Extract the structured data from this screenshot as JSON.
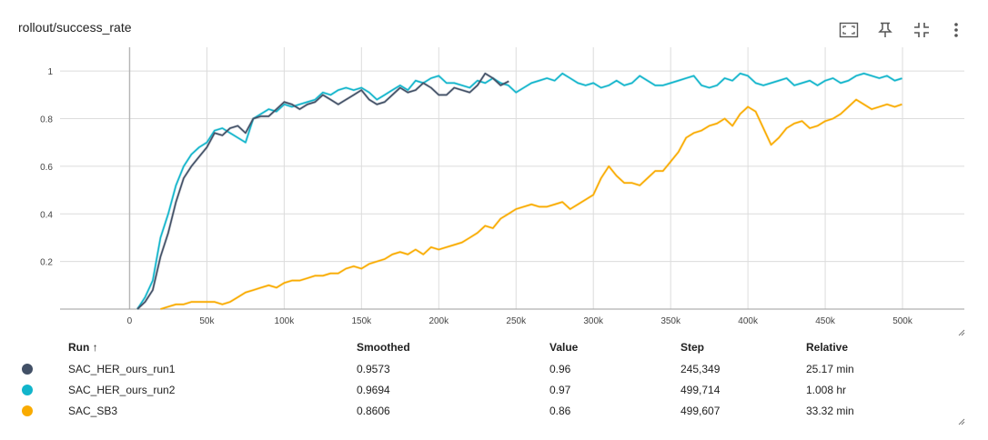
{
  "card": {
    "title": "rollout/success_rate"
  },
  "toolbar": [
    {
      "name": "fit-domain-button",
      "icon": "fit-to-data-icon"
    },
    {
      "name": "pin-button",
      "icon": "pin-icon"
    },
    {
      "name": "collapse-button",
      "icon": "collapse-icon"
    },
    {
      "name": "more-options-button",
      "icon": "more-vert-icon"
    }
  ],
  "chart_data": {
    "type": "line",
    "title": "rollout/success_rate",
    "xlabel": "",
    "ylabel": "",
    "xlim": [
      -45000,
      540000
    ],
    "ylim": [
      0,
      1.1
    ],
    "x_ticks": [
      "0",
      "50k",
      "100k",
      "150k",
      "200k",
      "250k",
      "300k",
      "350k",
      "400k",
      "450k",
      "500k"
    ],
    "x_tick_values": [
      0,
      50000,
      100000,
      150000,
      200000,
      250000,
      300000,
      350000,
      400000,
      450000,
      500000
    ],
    "y_ticks": [
      "0.2",
      "0.4",
      "0.6",
      "0.8",
      "1"
    ],
    "y_tick_values": [
      0.2,
      0.4,
      0.6,
      0.8,
      1.0
    ],
    "grid": true,
    "series": [
      {
        "name": "SAC_HER_ours_run1",
        "color": "#425066",
        "x": [
          5000,
          10000,
          15000,
          20000,
          25000,
          30000,
          35000,
          40000,
          45000,
          50000,
          55000,
          60000,
          65000,
          70000,
          75000,
          80000,
          85000,
          90000,
          95000,
          100000,
          105000,
          110000,
          115000,
          120000,
          125000,
          130000,
          135000,
          140000,
          145000,
          150000,
          155000,
          160000,
          165000,
          170000,
          175000,
          180000,
          185000,
          190000,
          195000,
          200000,
          205000,
          210000,
          215000,
          220000,
          225000,
          230000,
          235000,
          240000,
          245349
        ],
        "y": [
          0.0,
          0.03,
          0.08,
          0.22,
          0.32,
          0.45,
          0.55,
          0.6,
          0.64,
          0.68,
          0.74,
          0.73,
          0.76,
          0.77,
          0.74,
          0.8,
          0.81,
          0.81,
          0.84,
          0.87,
          0.86,
          0.84,
          0.86,
          0.87,
          0.9,
          0.88,
          0.86,
          0.88,
          0.9,
          0.92,
          0.88,
          0.86,
          0.87,
          0.9,
          0.93,
          0.91,
          0.92,
          0.95,
          0.93,
          0.9,
          0.9,
          0.93,
          0.92,
          0.91,
          0.94,
          0.99,
          0.97,
          0.94,
          0.9573
        ]
      },
      {
        "name": "SAC_HER_ours_run2",
        "color": "#12b5cb",
        "x": [
          5000,
          10000,
          15000,
          20000,
          25000,
          30000,
          35000,
          40000,
          45000,
          50000,
          55000,
          60000,
          65000,
          70000,
          75000,
          80000,
          85000,
          90000,
          95000,
          100000,
          105000,
          110000,
          115000,
          120000,
          125000,
          130000,
          135000,
          140000,
          145000,
          150000,
          155000,
          160000,
          165000,
          170000,
          175000,
          180000,
          185000,
          190000,
          195000,
          200000,
          205000,
          210000,
          215000,
          220000,
          225000,
          230000,
          235000,
          240000,
          245000,
          250000,
          255000,
          260000,
          265000,
          270000,
          275000,
          280000,
          285000,
          290000,
          295000,
          300000,
          305000,
          310000,
          315000,
          320000,
          325000,
          330000,
          335000,
          340000,
          345000,
          350000,
          355000,
          360000,
          365000,
          370000,
          375000,
          380000,
          385000,
          390000,
          395000,
          400000,
          405000,
          410000,
          415000,
          420000,
          425000,
          430000,
          435000,
          440000,
          445000,
          450000,
          455000,
          460000,
          465000,
          470000,
          475000,
          480000,
          485000,
          490000,
          495000,
          499714
        ],
        "y": [
          0.0,
          0.05,
          0.12,
          0.3,
          0.4,
          0.52,
          0.6,
          0.65,
          0.68,
          0.7,
          0.75,
          0.76,
          0.74,
          0.72,
          0.7,
          0.8,
          0.82,
          0.84,
          0.83,
          0.86,
          0.85,
          0.86,
          0.87,
          0.88,
          0.91,
          0.9,
          0.92,
          0.93,
          0.92,
          0.93,
          0.91,
          0.88,
          0.9,
          0.92,
          0.94,
          0.92,
          0.96,
          0.95,
          0.97,
          0.98,
          0.95,
          0.95,
          0.94,
          0.93,
          0.96,
          0.95,
          0.97,
          0.95,
          0.94,
          0.91,
          0.93,
          0.95,
          0.96,
          0.97,
          0.96,
          0.99,
          0.97,
          0.95,
          0.94,
          0.95,
          0.93,
          0.94,
          0.96,
          0.94,
          0.95,
          0.98,
          0.96,
          0.94,
          0.94,
          0.95,
          0.96,
          0.97,
          0.98,
          0.94,
          0.93,
          0.94,
          0.97,
          0.96,
          0.99,
          0.98,
          0.95,
          0.94,
          0.95,
          0.96,
          0.97,
          0.94,
          0.95,
          0.96,
          0.94,
          0.96,
          0.97,
          0.95,
          0.96,
          0.98,
          0.99,
          0.98,
          0.97,
          0.98,
          0.96,
          0.9694
        ]
      },
      {
        "name": "SAC_SB3",
        "color": "#f9ab00",
        "x": [
          20000,
          25000,
          30000,
          35000,
          40000,
          45000,
          50000,
          55000,
          60000,
          65000,
          70000,
          75000,
          80000,
          85000,
          90000,
          95000,
          100000,
          105000,
          110000,
          115000,
          120000,
          125000,
          130000,
          135000,
          140000,
          145000,
          150000,
          155000,
          160000,
          165000,
          170000,
          175000,
          180000,
          185000,
          190000,
          195000,
          200000,
          205000,
          210000,
          215000,
          220000,
          225000,
          230000,
          235000,
          240000,
          245000,
          250000,
          255000,
          260000,
          265000,
          270000,
          275000,
          280000,
          285000,
          290000,
          295000,
          300000,
          305000,
          310000,
          315000,
          320000,
          325000,
          330000,
          335000,
          340000,
          345000,
          350000,
          355000,
          360000,
          365000,
          370000,
          375000,
          380000,
          385000,
          390000,
          395000,
          400000,
          405000,
          410000,
          415000,
          420000,
          425000,
          430000,
          435000,
          440000,
          445000,
          450000,
          455000,
          460000,
          465000,
          470000,
          475000,
          480000,
          485000,
          490000,
          495000,
          499607
        ],
        "y": [
          0.0,
          0.01,
          0.02,
          0.02,
          0.03,
          0.03,
          0.03,
          0.03,
          0.02,
          0.03,
          0.05,
          0.07,
          0.08,
          0.09,
          0.1,
          0.09,
          0.11,
          0.12,
          0.12,
          0.13,
          0.14,
          0.14,
          0.15,
          0.15,
          0.17,
          0.18,
          0.17,
          0.19,
          0.2,
          0.21,
          0.23,
          0.24,
          0.23,
          0.25,
          0.23,
          0.26,
          0.25,
          0.26,
          0.27,
          0.28,
          0.3,
          0.32,
          0.35,
          0.34,
          0.38,
          0.4,
          0.42,
          0.43,
          0.44,
          0.43,
          0.43,
          0.44,
          0.45,
          0.42,
          0.44,
          0.46,
          0.48,
          0.55,
          0.6,
          0.56,
          0.53,
          0.53,
          0.52,
          0.55,
          0.58,
          0.58,
          0.62,
          0.66,
          0.72,
          0.74,
          0.75,
          0.77,
          0.78,
          0.8,
          0.77,
          0.82,
          0.85,
          0.83,
          0.76,
          0.69,
          0.72,
          0.76,
          0.78,
          0.79,
          0.76,
          0.77,
          0.79,
          0.8,
          0.82,
          0.85,
          0.88,
          0.86,
          0.84,
          0.85,
          0.86,
          0.85,
          0.8606
        ]
      }
    ]
  },
  "table": {
    "columns": [
      "Run ↑",
      "Smoothed",
      "Value",
      "Step",
      "Relative"
    ],
    "rows": [
      {
        "run": "SAC_HER_ours_run1",
        "color": "#425066",
        "smoothed": "0.9573",
        "value": "0.96",
        "step": "245,349",
        "relative": "25.17 min"
      },
      {
        "run": "SAC_HER_ours_run2",
        "color": "#12b5cb",
        "smoothed": "0.9694",
        "value": "0.97",
        "step": "499,714",
        "relative": "1.008 hr"
      },
      {
        "run": "SAC_SB3",
        "color": "#f9ab00",
        "smoothed": "0.8606",
        "value": "0.86",
        "step": "499,607",
        "relative": "33.32 min"
      }
    ]
  }
}
